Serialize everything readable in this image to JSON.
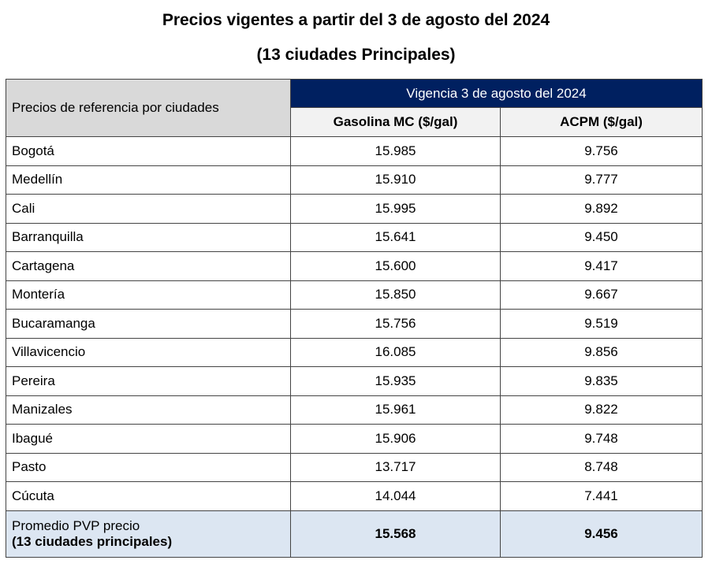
{
  "title": "Precios vigentes a partir del 3 de agosto del 2024",
  "subtitle": "(13 ciudades Principales)",
  "table": {
    "corner_header": "Precios de referencia por ciudades",
    "group_header": "Vigencia 3 de agosto del 2024",
    "columns": [
      "Gasolina MC ($/gal)",
      "ACPM ($/gal)"
    ],
    "rows": [
      {
        "city": "Bogotá",
        "gasolina": "15.985",
        "acpm": "9.756"
      },
      {
        "city": "Medellín",
        "gasolina": "15.910",
        "acpm": "9.777"
      },
      {
        "city": "Cali",
        "gasolina": "15.995",
        "acpm": "9.892"
      },
      {
        "city": "Barranquilla",
        "gasolina": "15.641",
        "acpm": "9.450"
      },
      {
        "city": "Cartagena",
        "gasolina": "15.600",
        "acpm": "9.417"
      },
      {
        "city": "Montería",
        "gasolina": "15.850",
        "acpm": "9.667"
      },
      {
        "city": "Bucaramanga",
        "gasolina": "15.756",
        "acpm": "9.519"
      },
      {
        "city": "Villavicencio",
        "gasolina": "16.085",
        "acpm": "9.856"
      },
      {
        "city": "Pereira",
        "gasolina": "15.935",
        "acpm": "9.835"
      },
      {
        "city": "Manizales",
        "gasolina": "15.961",
        "acpm": "9.822"
      },
      {
        "city": "Ibagué",
        "gasolina": "15.906",
        "acpm": "9.748"
      },
      {
        "city": "Pasto",
        "gasolina": "13.717",
        "acpm": "8.748"
      },
      {
        "city": "Cúcuta",
        "gasolina": "14.044",
        "acpm": "7.441"
      }
    ],
    "average": {
      "label_line1": "Promedio PVP precio",
      "label_line2": "(13 ciudades principales)",
      "gasolina": "15.568",
      "acpm": "9.456"
    }
  }
}
